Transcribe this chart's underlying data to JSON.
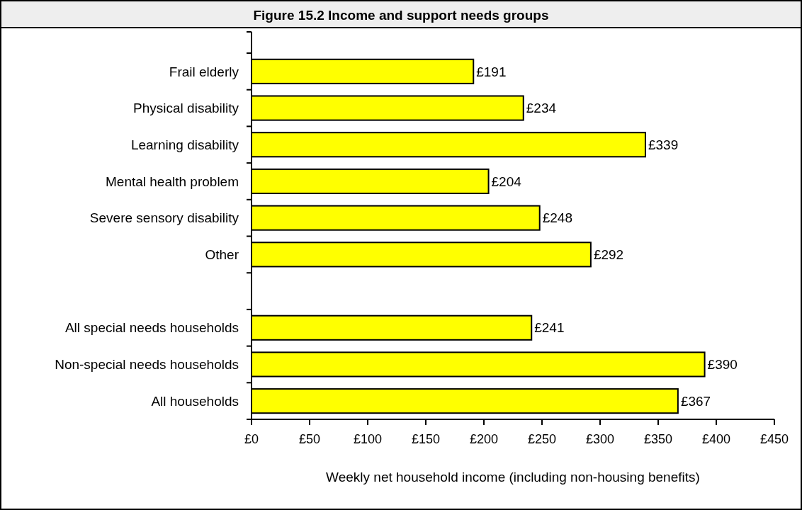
{
  "chart_data": {
    "type": "bar",
    "orientation": "horizontal",
    "title": "Figure 15.2 Income and support needs groups",
    "xlabel": "Weekly net household income (including non-housing benefits)",
    "categories": [
      "Frail elderly",
      "Physical disability",
      "Learning disability",
      "Mental health problem",
      "Severe sensory disability",
      "Other",
      null,
      "All special needs households",
      "Non-special needs households",
      "All households"
    ],
    "values": [
      191,
      234,
      339,
      204,
      248,
      292,
      null,
      241,
      390,
      367
    ],
    "value_labels": [
      "£191",
      "£234",
      "£339",
      "£204",
      "£248",
      "£292",
      null,
      "£241",
      "£390",
      "£367"
    ],
    "color": "#ffff00",
    "xlim": [
      0,
      450
    ],
    "xticks": [
      {
        "value": 0,
        "label": "£0"
      },
      {
        "value": 50,
        "label": "£50"
      },
      {
        "value": 100,
        "label": "£100"
      },
      {
        "value": 150,
        "label": "£150"
      },
      {
        "value": 200,
        "label": "£200"
      },
      {
        "value": 250,
        "label": "£250"
      },
      {
        "value": 300,
        "label": "£300"
      },
      {
        "value": 350,
        "label": "£350"
      },
      {
        "value": 400,
        "label": "£400"
      },
      {
        "value": 450,
        "label": "£450"
      }
    ],
    "grid": false
  }
}
